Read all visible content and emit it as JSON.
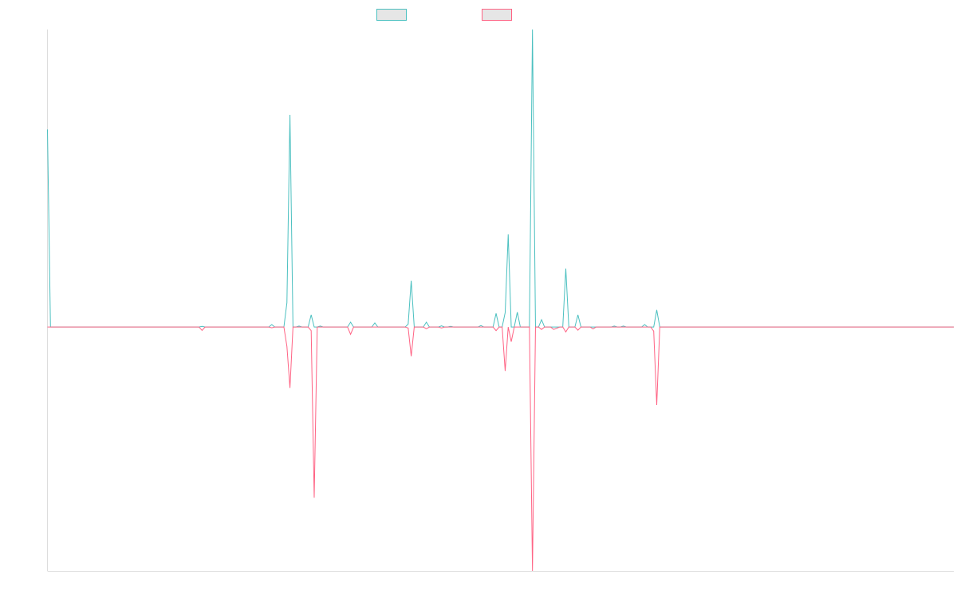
{
  "chart_data": {
    "type": "line",
    "title": "",
    "xlabel": "",
    "ylabel": "",
    "ylim": [
      -1.0,
      1.22
    ],
    "xlim": [
      0,
      299
    ],
    "grid": false,
    "legend_position": "top-center",
    "colors": {
      "series_0": "#4bc0c0",
      "series_1": "#ff6384",
      "axis": "#dddddd"
    },
    "series": [
      {
        "name": "",
        "color": "#4bc0c0",
        "points": [
          [
            0,
            0.81
          ],
          [
            1,
            0.0
          ],
          [
            50,
            0.0
          ],
          [
            51,
            0.003
          ],
          [
            52,
            0.0
          ],
          [
            73,
            0.0
          ],
          [
            74,
            0.01
          ],
          [
            75,
            0.0
          ],
          [
            78,
            0.0
          ],
          [
            79,
            0.1
          ],
          [
            80,
            0.87
          ],
          [
            81,
            0.0
          ],
          [
            82,
            0.0
          ],
          [
            83,
            0.004
          ],
          [
            84,
            0.0
          ],
          [
            86,
            0.0
          ],
          [
            87,
            0.05
          ],
          [
            88,
            0.0
          ],
          [
            89,
            0.0
          ],
          [
            90,
            0.004
          ],
          [
            91,
            0.0
          ],
          [
            99,
            0.0
          ],
          [
            100,
            0.02
          ],
          [
            101,
            0.0
          ],
          [
            107,
            0.0
          ],
          [
            108,
            0.017
          ],
          [
            109,
            0.0
          ],
          [
            118,
            0.0
          ],
          [
            119,
            0.012
          ],
          [
            120,
            0.19
          ],
          [
            121,
            0.0
          ],
          [
            124,
            0.0
          ],
          [
            125,
            0.02
          ],
          [
            126,
            0.0
          ],
          [
            129,
            0.0
          ],
          [
            130,
            0.005
          ],
          [
            131,
            0.0
          ],
          [
            132,
            0.0
          ],
          [
            133,
            0.003
          ],
          [
            134,
            0.0
          ],
          [
            142,
            0.0
          ],
          [
            143,
            0.006
          ],
          [
            144,
            0.0
          ],
          [
            147,
            0.0
          ],
          [
            148,
            0.056
          ],
          [
            149,
            0.0
          ],
          [
            150,
            0.0
          ],
          [
            151,
            0.059
          ],
          [
            152,
            0.38
          ],
          [
            153,
            0.0
          ],
          [
            154,
            0.0
          ],
          [
            155,
            0.061
          ],
          [
            156,
            0.0
          ],
          [
            157,
            0.0
          ],
          [
            158,
            0.0
          ],
          [
            159,
            0.0
          ],
          [
            160,
            1.22
          ],
          [
            161,
            0.0
          ],
          [
            162,
            0.0
          ],
          [
            163,
            0.03
          ],
          [
            164,
            0.0
          ],
          [
            166,
            0.0
          ],
          [
            167,
            0.0
          ],
          [
            169,
            0.0
          ],
          [
            170,
            0.0
          ],
          [
            171,
            0.24
          ],
          [
            172,
            0.0
          ],
          [
            173,
            0.0
          ],
          [
            174,
            0.0
          ],
          [
            175,
            0.05
          ],
          [
            176,
            0.0
          ],
          [
            179,
            0.0
          ],
          [
            180,
            0.0
          ],
          [
            181,
            0.0
          ],
          [
            184,
            0.0
          ],
          [
            185,
            0.0
          ],
          [
            186,
            0.0
          ],
          [
            187,
            0.004
          ],
          [
            188,
            0.0
          ],
          [
            189,
            0.0
          ],
          [
            190,
            0.004
          ],
          [
            191,
            0.0
          ],
          [
            192,
            0.0
          ],
          [
            193,
            0.0
          ],
          [
            196,
            0.0
          ],
          [
            197,
            0.01
          ],
          [
            198,
            0.0
          ],
          [
            199,
            0.0
          ],
          [
            200,
            0.0
          ],
          [
            201,
            0.07
          ],
          [
            202,
            0.0
          ],
          [
            299,
            0.0
          ]
        ]
      },
      {
        "name": "",
        "color": "#ff6384",
        "points": [
          [
            0,
            0.0
          ],
          [
            1,
            0.0
          ],
          [
            50,
            0.0
          ],
          [
            51,
            -0.014
          ],
          [
            52,
            0.0
          ],
          [
            73,
            0.0
          ],
          [
            74,
            -0.003
          ],
          [
            75,
            0.0
          ],
          [
            78,
            0.0
          ],
          [
            79,
            -0.08
          ],
          [
            80,
            -0.25
          ],
          [
            81,
            0.0
          ],
          [
            86,
            0.0
          ],
          [
            87,
            -0.015
          ],
          [
            88,
            -0.7
          ],
          [
            89,
            0.0
          ],
          [
            99,
            0.0
          ],
          [
            100,
            -0.03
          ],
          [
            101,
            0.0
          ],
          [
            118,
            0.0
          ],
          [
            119,
            -0.004
          ],
          [
            120,
            -0.12
          ],
          [
            121,
            0.0
          ],
          [
            124,
            0.0
          ],
          [
            125,
            -0.007
          ],
          [
            126,
            0.0
          ],
          [
            129,
            0.0
          ],
          [
            130,
            -0.004
          ],
          [
            131,
            0.0
          ],
          [
            147,
            0.0
          ],
          [
            148,
            -0.015
          ],
          [
            149,
            0.0
          ],
          [
            150,
            0.0
          ],
          [
            151,
            -0.18
          ],
          [
            152,
            0.0
          ],
          [
            153,
            -0.06
          ],
          [
            154,
            0.0
          ],
          [
            155,
            0.0
          ],
          [
            159,
            0.0
          ],
          [
            160,
            -1.0
          ],
          [
            161,
            0.0
          ],
          [
            162,
            0.0
          ],
          [
            163,
            -0.01
          ],
          [
            164,
            0.0
          ],
          [
            166,
            0.0
          ],
          [
            167,
            -0.01
          ],
          [
            169,
            0.0
          ],
          [
            170,
            0.0
          ],
          [
            171,
            -0.02
          ],
          [
            172,
            0.0
          ],
          [
            173,
            0.0
          ],
          [
            174,
            0.0
          ],
          [
            175,
            -0.013
          ],
          [
            176,
            0.0
          ],
          [
            179,
            0.0
          ],
          [
            180,
            -0.008
          ],
          [
            181,
            0.0
          ],
          [
            199,
            0.0
          ],
          [
            200,
            -0.017
          ],
          [
            201,
            -0.32
          ],
          [
            202,
            0.0
          ],
          [
            299,
            0.0
          ]
        ]
      }
    ]
  }
}
